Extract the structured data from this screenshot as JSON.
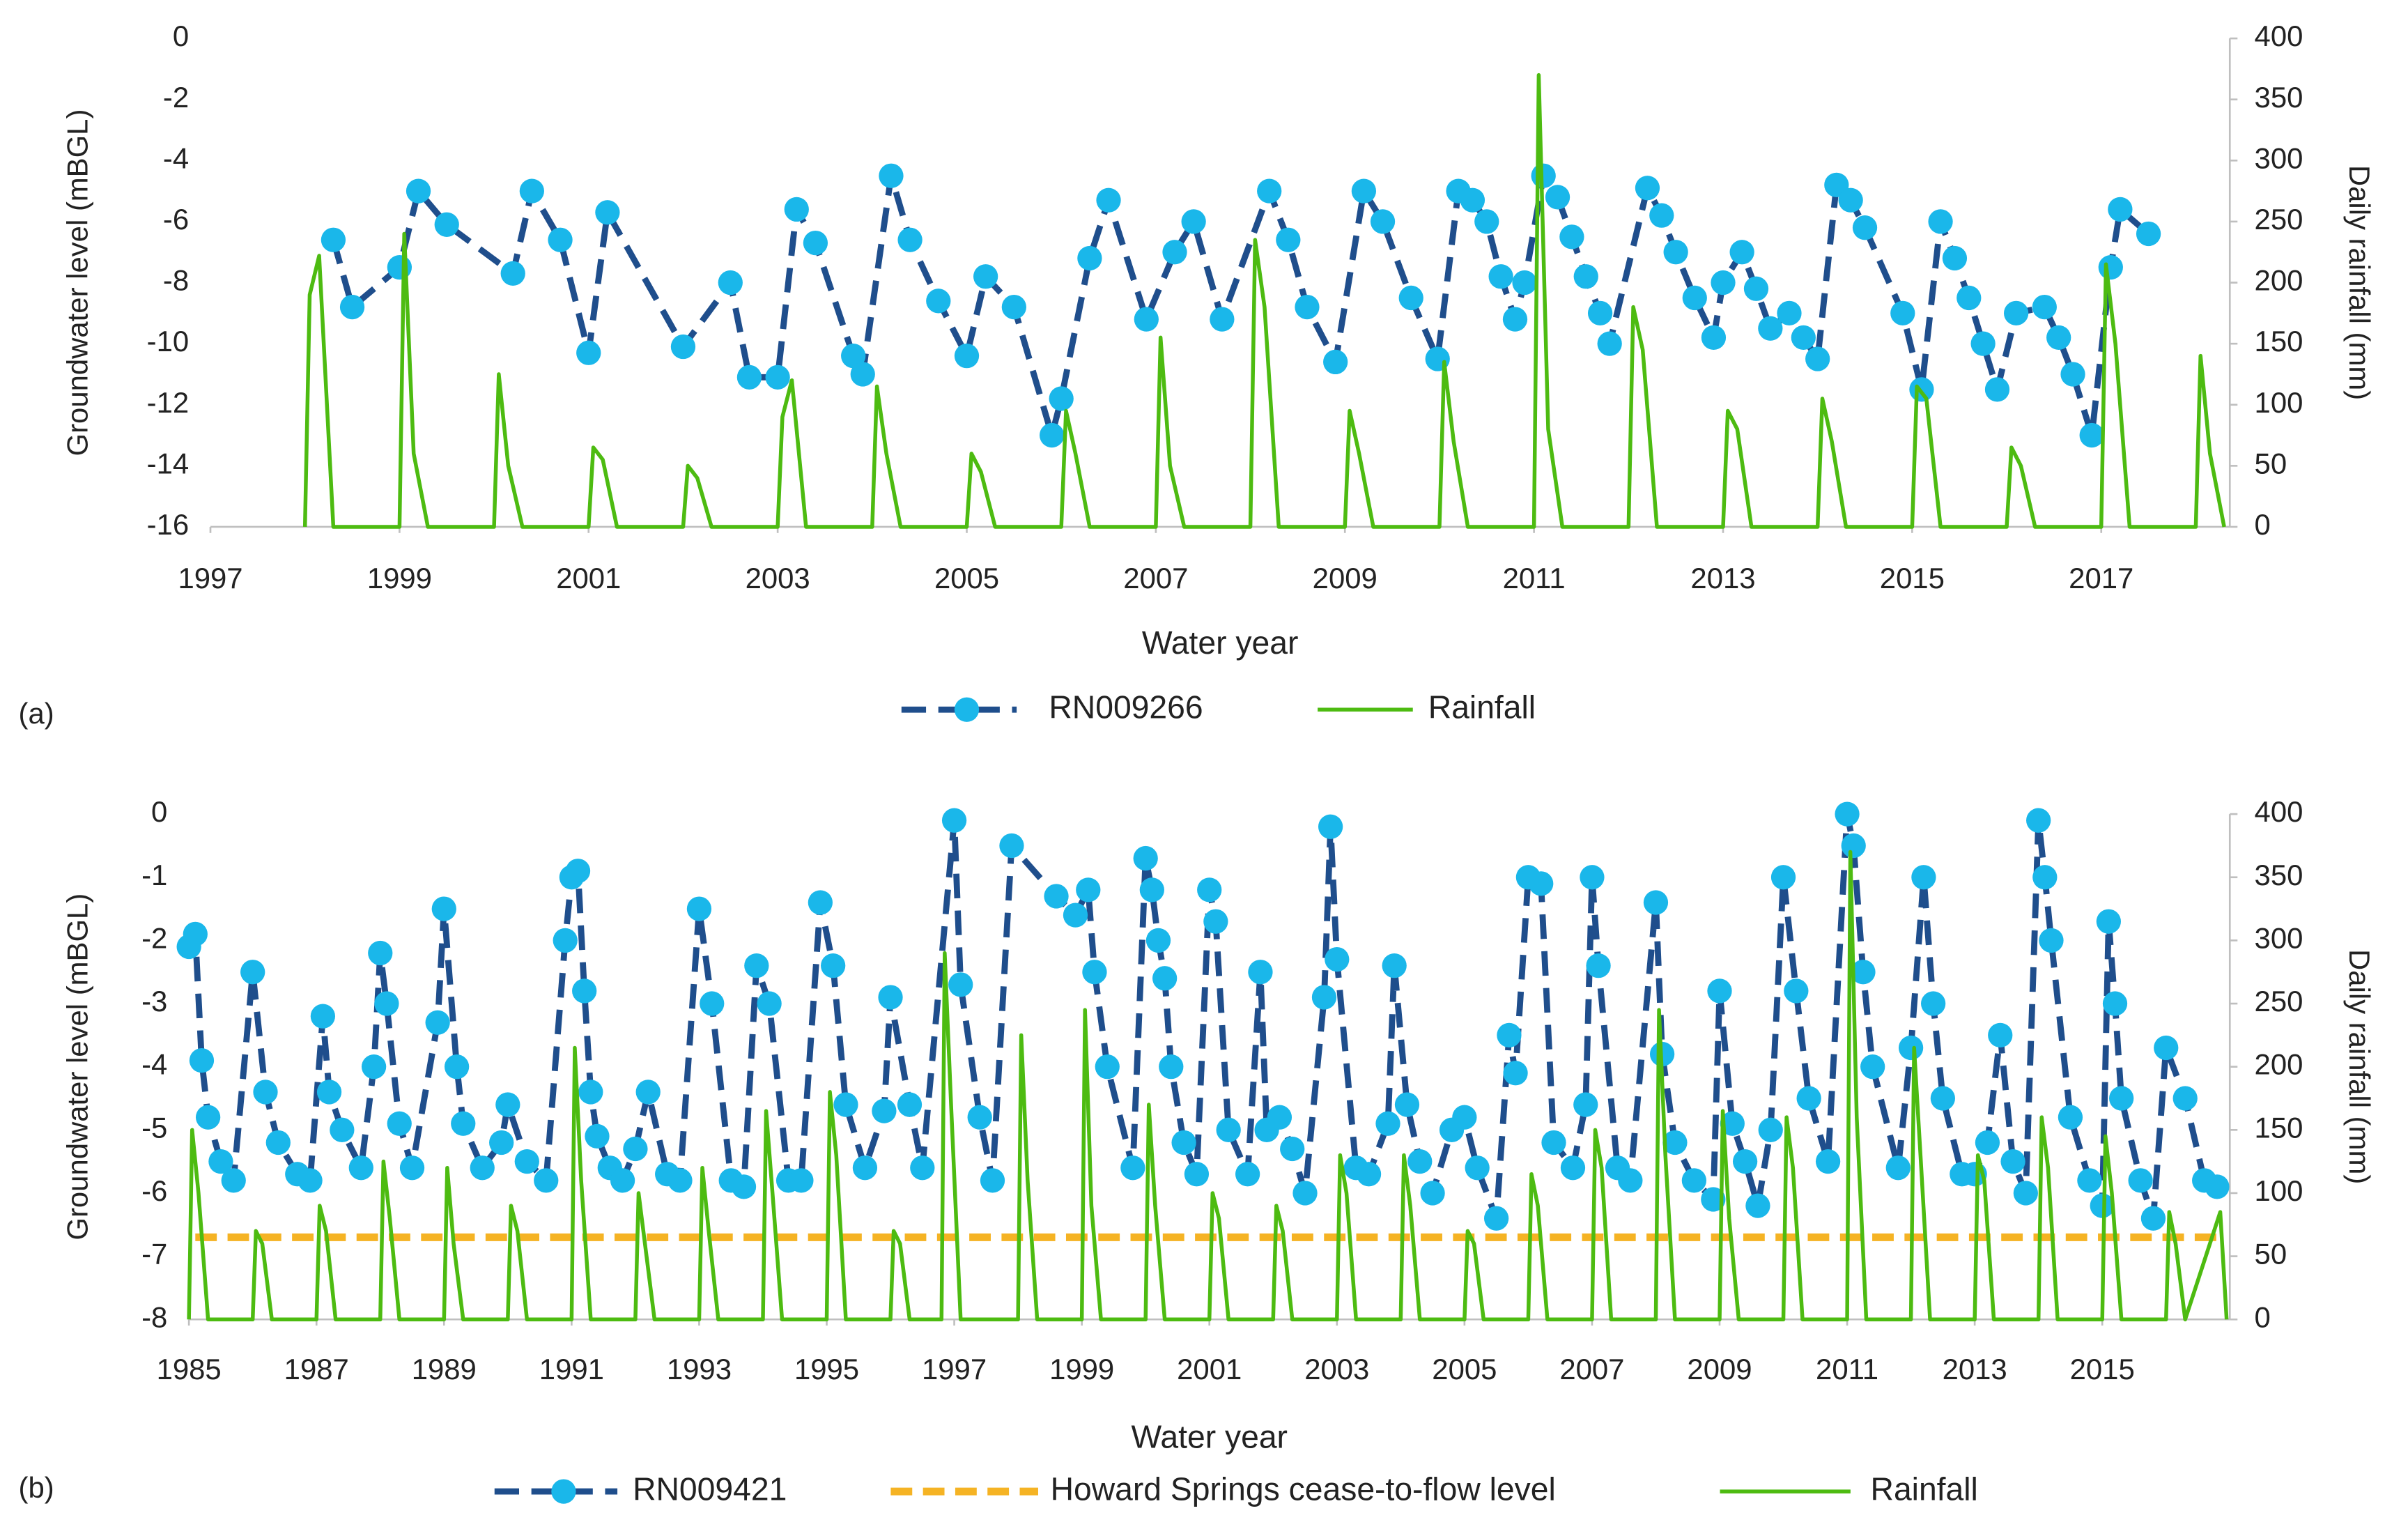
{
  "chart_data": [
    {
      "type": "line",
      "panel_label": "(a)",
      "x_label": "Water year",
      "y_label": "Groundwater level (mBGL)",
      "y2_label": "Daily rainfall (mm)",
      "xlim": [
        1997,
        2018.36
      ],
      "xticks": [
        1997,
        1999,
        2001,
        2003,
        2005,
        2007,
        2009,
        2011,
        2013,
        2015,
        2017
      ],
      "ylim": [
        -16,
        0
      ],
      "yticks": [
        0,
        -2,
        -4,
        -6,
        -8,
        -10,
        -12,
        -14,
        -16
      ],
      "y2lim": [
        0,
        400
      ],
      "y2ticks": [
        0,
        50,
        100,
        150,
        200,
        250,
        300,
        350,
        400
      ],
      "legend": "bottom",
      "series": [
        {
          "name": "RN009266",
          "color": "#1f4e8c",
          "marker_color": "#1ab7ea",
          "style": "dashed-markers",
          "axis": "y",
          "x": [
            1998.3,
            1998.5,
            1999.0,
            1999.2,
            1999.5,
            2000.2,
            2000.4,
            2000.7,
            2001.0,
            2001.2,
            2002.0,
            2002.5,
            2002.7,
            2003.0,
            2003.2,
            2003.4,
            2003.8,
            2003.9,
            2004.2,
            2004.4,
            2004.7,
            2005.0,
            2005.2,
            2005.5,
            2005.9,
            2006.0,
            2006.3,
            2006.5,
            2006.9,
            2007.2,
            2007.4,
            2007.7,
            2008.2,
            2008.4,
            2008.6,
            2008.9,
            2009.2,
            2009.4,
            2009.7,
            2009.98,
            2010.2,
            2010.35,
            2010.5,
            2010.65,
            2010.8,
            2010.9,
            2011.1,
            2011.25,
            2011.4,
            2011.55,
            2011.7,
            2011.8,
            2012.2,
            2012.35,
            2012.5,
            2012.7,
            2012.9,
            2013.0,
            2013.2,
            2013.35,
            2013.5,
            2013.7,
            2013.85,
            2014.0,
            2014.2,
            2014.35,
            2014.5,
            2014.9,
            2015.1,
            2015.3,
            2015.45,
            2015.6,
            2015.75,
            2015.9,
            2016.1,
            2016.4,
            2016.55,
            2016.7,
            2016.9,
            2017.1,
            2017.2,
            2017.5
          ],
          "values": [
            -6.6,
            -8.8,
            -7.5,
            -5.0,
            -6.1,
            -7.7,
            -5.0,
            -6.6,
            -10.3,
            -5.7,
            -10.1,
            -8.0,
            -11.1,
            -11.1,
            -5.6,
            -6.7,
            -10.4,
            -11.0,
            -4.5,
            -6.6,
            -8.6,
            -10.4,
            -7.8,
            -8.8,
            -13.0,
            -11.8,
            -7.2,
            -5.3,
            -9.2,
            -7.0,
            -6.0,
            -9.2,
            -5.0,
            -6.6,
            -8.8,
            -10.6,
            -5.0,
            -6.0,
            -8.5,
            -10.5,
            -5.0,
            -5.3,
            -6.0,
            -7.8,
            -9.2,
            -8.0,
            -4.5,
            -5.2,
            -6.5,
            -7.8,
            -9.0,
            -10.0,
            -4.9,
            -5.8,
            -7.0,
            -8.5,
            -9.8,
            -8.0,
            -7.0,
            -8.2,
            -9.5,
            -9.0,
            -9.8,
            -10.5,
            -4.8,
            -5.3,
            -6.2,
            -9.0,
            -11.5,
            -6.0,
            -7.2,
            -8.5,
            -10.0,
            -11.5,
            -9.0,
            -8.8,
            -9.8,
            -11.0,
            -13.0,
            -7.5,
            -5.6,
            -6.4
          ]
        },
        {
          "name": "Rainfall",
          "color": "#4dbb11",
          "style": "solid",
          "axis": "y2",
          "x": [
            1998,
            1998.05,
            1998.15,
            1998.3,
            1999,
            1999.05,
            1999.15,
            1999.3,
            2000,
            2000.05,
            2000.15,
            2000.3,
            2001,
            2001.05,
            2001.15,
            2001.3,
            2002,
            2002.05,
            2002.15,
            2002.3,
            2003,
            2003.05,
            2003.15,
            2003.3,
            2004,
            2004.05,
            2004.15,
            2004.3,
            2005,
            2005.05,
            2005.15,
            2005.3,
            2006,
            2006.05,
            2006.15,
            2006.3,
            2007,
            2007.05,
            2007.15,
            2007.3,
            2008,
            2008.05,
            2008.15,
            2008.3,
            2009,
            2009.05,
            2009.15,
            2009.3,
            2010,
            2010.05,
            2010.15,
            2010.3,
            2011,
            2011.05,
            2011.15,
            2011.3,
            2012,
            2012.05,
            2012.15,
            2012.3,
            2013,
            2013.05,
            2013.15,
            2013.3,
            2014,
            2014.05,
            2014.15,
            2014.3,
            2015,
            2015.05,
            2015.15,
            2015.3,
            2016,
            2016.05,
            2016.15,
            2016.3,
            2017,
            2017.05,
            2017.15,
            2017.3,
            2018,
            2018.05,
            2018.15,
            2018.3
          ],
          "values": [
            0,
            190,
            222,
            0,
            0,
            240,
            60,
            0,
            0,
            125,
            50,
            0,
            0,
            65,
            55,
            0,
            0,
            50,
            40,
            0,
            0,
            90,
            120,
            0,
            0,
            115,
            60,
            0,
            0,
            60,
            45,
            0,
            0,
            95,
            60,
            0,
            0,
            155,
            50,
            0,
            0,
            235,
            180,
            0,
            0,
            95,
            60,
            0,
            0,
            135,
            70,
            0,
            0,
            370,
            80,
            0,
            0,
            180,
            145,
            0,
            0,
            95,
            80,
            0,
            0,
            105,
            70,
            0,
            0,
            115,
            105,
            0,
            0,
            65,
            50,
            0,
            0,
            215,
            150,
            0,
            0,
            140,
            60,
            0
          ]
        }
      ]
    },
    {
      "type": "line",
      "panel_label": "(b)",
      "x_label": "Water year",
      "y_label": "Groundwater level (mBGL)",
      "y2_label": "Daily rainfall (mm)",
      "xlim": [
        1985,
        2017
      ],
      "xticks": [
        1985,
        1987,
        1989,
        1991,
        1993,
        1995,
        1997,
        1999,
        2001,
        2003,
        2005,
        2007,
        2009,
        2011,
        2013,
        2015
      ],
      "ylim": [
        -8,
        0
      ],
      "yticks": [
        0,
        -1,
        -2,
        -3,
        -4,
        -5,
        -6,
        -7,
        -8
      ],
      "y2lim": [
        0,
        400
      ],
      "y2ticks": [
        0,
        50,
        100,
        150,
        200,
        250,
        300,
        350,
        400
      ],
      "legend": "bottom",
      "series": [
        {
          "name": "RN009421",
          "color": "#1f4e8c",
          "marker_color": "#1ab7ea",
          "style": "dashed-markers",
          "axis": "y",
          "x": [
            1985.0,
            1985.1,
            1985.2,
            1985.3,
            1985.5,
            1985.7,
            1986.0,
            1986.2,
            1986.4,
            1986.7,
            1986.9,
            1987.1,
            1987.2,
            1987.4,
            1987.7,
            1987.9,
            1988.0,
            1988.1,
            1988.3,
            1988.5,
            1988.9,
            1989.0,
            1989.2,
            1989.3,
            1989.6,
            1989.9,
            1990.0,
            1990.3,
            1990.6,
            1990.9,
            1991.0,
            1991.1,
            1991.2,
            1991.3,
            1991.4,
            1991.6,
            1991.8,
            1992.0,
            1992.2,
            1992.5,
            1992.7,
            1993.0,
            1993.2,
            1993.5,
            1993.7,
            1993.9,
            1994.1,
            1994.4,
            1994.6,
            1994.9,
            1995.1,
            1995.3,
            1995.6,
            1995.9,
            1996.0,
            1996.3,
            1996.5,
            1997.0,
            1997.1,
            1997.4,
            1997.6,
            1997.9,
            1998.6,
            1998.9,
            1999.1,
            1999.2,
            1999.4,
            1999.8,
            2000.0,
            2000.1,
            2000.2,
            2000.3,
            2000.4,
            2000.6,
            2000.8,
            2001.0,
            2001.1,
            2001.3,
            2001.6,
            2001.8,
            2001.9,
            2002.1,
            2002.3,
            2002.5,
            2002.8,
            2002.9,
            2003.0,
            2003.3,
            2003.5,
            2003.8,
            2003.9,
            2004.1,
            2004.3,
            2004.5,
            2004.8,
            2005.0,
            2005.2,
            2005.5,
            2005.7,
            2005.8,
            2006.0,
            2006.2,
            2006.4,
            2006.7,
            2006.9,
            2007.0,
            2007.1,
            2007.4,
            2007.6,
            2008.0,
            2008.1,
            2008.3,
            2008.6,
            2008.9,
            2009.0,
            2009.2,
            2009.4,
            2009.6,
            2009.8,
            2010.0,
            2010.2,
            2010.4,
            2010.7,
            2011.0,
            2011.1,
            2011.25,
            2011.4,
            2011.8,
            2012.0,
            2012.2,
            2012.35,
            2012.5,
            2012.8,
            2013.0,
            2013.2,
            2013.4,
            2013.6,
            2013.8,
            2014.0,
            2014.1,
            2014.2,
            2014.5,
            2014.8,
            2015.0,
            2015.1,
            2015.2,
            2015.3,
            2015.6,
            2015.8,
            2016.0,
            2016.3,
            2016.6,
            2016.8
          ],
          "values": [
            -2.1,
            -1.9,
            -3.9,
            -4.8,
            -5.5,
            -5.8,
            -2.5,
            -4.4,
            -5.2,
            -5.7,
            -5.8,
            -3.2,
            -4.4,
            -5.0,
            -5.6,
            -4.0,
            -2.2,
            -3.0,
            -4.9,
            -5.6,
            -3.3,
            -1.5,
            -4.0,
            -4.9,
            -5.6,
            -5.2,
            -4.6,
            -5.5,
            -5.8,
            -2.0,
            -1.0,
            -0.9,
            -2.8,
            -4.4,
            -5.1,
            -5.6,
            -5.8,
            -5.3,
            -4.4,
            -5.7,
            -5.8,
            -1.5,
            -3.0,
            -5.8,
            -5.9,
            -2.4,
            -3.0,
            -5.8,
            -5.8,
            -1.4,
            -2.4,
            -4.6,
            -5.6,
            -4.7,
            -2.9,
            -4.6,
            -5.6,
            -0.1,
            -2.7,
            -4.8,
            -5.8,
            -0.5,
            -1.3,
            -1.6,
            -1.2,
            -2.5,
            -4.0,
            -5.6,
            -0.7,
            -1.2,
            -2.0,
            -2.6,
            -4.0,
            -5.2,
            -5.7,
            -1.2,
            -1.7,
            -5.0,
            -5.7,
            -2.5,
            -5.0,
            -4.8,
            -5.3,
            -6.0,
            -2.9,
            -0.2,
            -2.3,
            -5.6,
            -5.7,
            -4.9,
            -2.4,
            -4.6,
            -5.5,
            -6.0,
            -5.0,
            -4.8,
            -5.6,
            -6.4,
            -3.5,
            -4.1,
            -1.0,
            -1.1,
            -5.2,
            -5.6,
            -4.6,
            -1.0,
            -2.4,
            -5.6,
            -5.8,
            -1.4,
            -3.8,
            -5.2,
            -5.8,
            -6.1,
            -2.8,
            -4.9,
            -5.5,
            -6.2,
            -5.0,
            -1.0,
            -2.8,
            -4.5,
            -5.5,
            0,
            -0.5,
            -2.5,
            -4.0,
            -5.6,
            -3.7,
            -1.0,
            -3.0,
            -4.5,
            -5.7,
            -5.7,
            -5.2,
            -3.5,
            -5.5,
            -6.0,
            -0.1,
            -1.0,
            -2.0,
            -4.8,
            -5.8,
            -6.2,
            -1.7,
            -3.0,
            -4.5,
            -5.8,
            -6.4,
            -3.7,
            -4.5,
            -5.8,
            -5.9
          ]
        },
        {
          "name": "Howard Springs cease-to-flow level",
          "color": "#f5b324",
          "style": "dashed",
          "axis": "y",
          "x": [
            1985.1,
            2016.9
          ],
          "values": [
            -6.7,
            -6.7
          ]
        },
        {
          "name": "Rainfall",
          "color": "#4dbb11",
          "style": "solid",
          "axis": "y2",
          "x": [
            1985,
            1985.05,
            1985.15,
            1985.3,
            1986,
            1986.05,
            1986.15,
            1986.3,
            1987,
            1987.05,
            1987.15,
            1987.3,
            1988,
            1988.05,
            1988.15,
            1988.3,
            1989,
            1989.05,
            1989.15,
            1989.3,
            1990,
            1990.05,
            1990.15,
            1990.3,
            1991,
            1991.05,
            1991.15,
            1991.3,
            1992,
            1992.05,
            1992.15,
            1992.3,
            1993,
            1993.05,
            1993.15,
            1993.3,
            1994,
            1994.05,
            1994.15,
            1994.3,
            1995,
            1995.05,
            1995.15,
            1995.3,
            1996,
            1996.05,
            1996.15,
            1996.3,
            1996.8,
            1996.85,
            1996.95,
            1997.1,
            1998,
            1998.05,
            1998.15,
            1998.3,
            1999,
            1999.05,
            1999.15,
            1999.3,
            2000,
            2000.05,
            2000.15,
            2000.3,
            2001,
            2001.05,
            2001.15,
            2001.3,
            2002,
            2002.05,
            2002.15,
            2002.3,
            2003,
            2003.05,
            2003.15,
            2003.3,
            2004,
            2004.05,
            2004.15,
            2004.3,
            2005,
            2005.05,
            2005.15,
            2005.3,
            2006,
            2006.05,
            2006.15,
            2006.3,
            2007,
            2007.05,
            2007.15,
            2007.3,
            2008,
            2008.05,
            2008.15,
            2008.3,
            2009,
            2009.05,
            2009.15,
            2009.3,
            2010,
            2010.05,
            2010.15,
            2010.3,
            2011,
            2011.05,
            2011.15,
            2011.3,
            2012,
            2012.05,
            2012.15,
            2012.3,
            2013,
            2013.05,
            2013.15,
            2013.3,
            2014,
            2014.05,
            2014.15,
            2014.3,
            2015,
            2015.05,
            2015.15,
            2015.3,
            2016,
            2016.05,
            2016.15,
            2016.3,
            2016.85,
            2016.95
          ],
          "values": [
            0,
            150,
            100,
            0,
            0,
            70,
            60,
            0,
            0,
            90,
            70,
            0,
            0,
            125,
            80,
            0,
            0,
            120,
            60,
            0,
            0,
            90,
            70,
            0,
            0,
            215,
            110,
            0,
            0,
            100,
            60,
            0,
            0,
            120,
            70,
            0,
            0,
            165,
            100,
            0,
            0,
            180,
            130,
            0,
            0,
            70,
            60,
            0,
            0,
            290,
            170,
            0,
            0,
            225,
            110,
            0,
            0,
            245,
            90,
            0,
            0,
            170,
            90,
            0,
            0,
            100,
            80,
            0,
            0,
            90,
            70,
            0,
            0,
            130,
            100,
            0,
            0,
            130,
            90,
            0,
            0,
            70,
            60,
            0,
            0,
            115,
            90,
            0,
            0,
            150,
            120,
            0,
            0,
            245,
            130,
            0,
            0,
            165,
            80,
            0,
            0,
            160,
            120,
            0,
            0,
            370,
            160,
            0,
            0,
            215,
            130,
            0,
            0,
            130,
            110,
            0,
            0,
            160,
            120,
            0,
            0,
            145,
            100,
            0,
            0,
            85,
            60,
            0,
            85,
            0
          ]
        }
      ]
    }
  ]
}
